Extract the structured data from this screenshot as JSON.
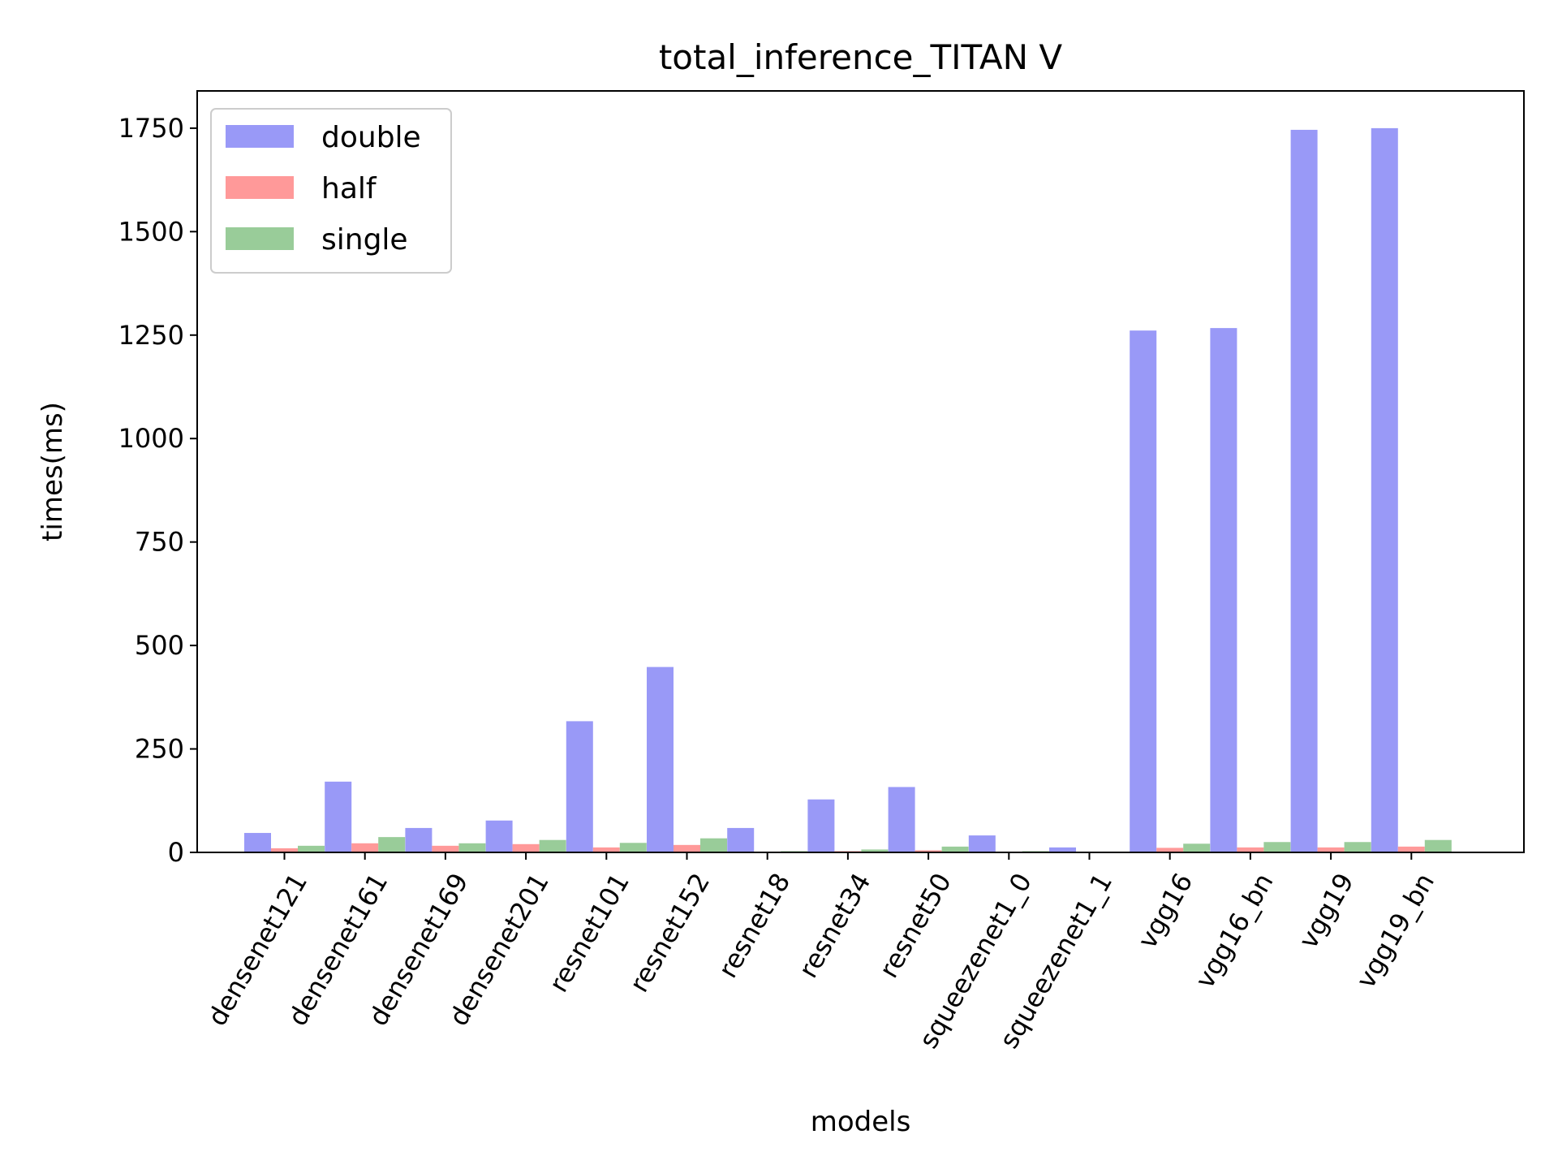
{
  "chart_data": {
    "type": "bar",
    "title": "total_inference_TITAN V",
    "xlabel": "models",
    "ylabel": "times(ms)",
    "ylim": [
      0,
      1840
    ],
    "yticks": [
      0,
      250,
      500,
      750,
      1000,
      1250,
      1500,
      1750
    ],
    "yticklabels": [
      "0",
      "250",
      "500",
      "750",
      "1000",
      "1250",
      "1500",
      "1750"
    ],
    "legend_position": "top-left",
    "categories": [
      "densenet121",
      "densenet161",
      "densenet169",
      "densenet201",
      "resnet101",
      "resnet152",
      "resnet18",
      "resnet34",
      "resnet50",
      "squeezenet1_0",
      "squeezenet1_1",
      "vgg16",
      "vgg16_bn",
      "vgg19",
      "vgg19_bn"
    ],
    "series": [
      {
        "name": "double",
        "color": "#9999f7",
        "values": [
          47,
          171,
          59,
          77,
          317,
          448,
          59,
          128,
          158,
          41,
          12,
          1261,
          1267,
          1746,
          1750
        ]
      },
      {
        "name": "half",
        "color": "#ff9999",
        "values": [
          10,
          22,
          16,
          20,
          12,
          18,
          2,
          3,
          5,
          2,
          1,
          11,
          12,
          12,
          14
        ]
      },
      {
        "name": "single",
        "color": "#99cc99",
        "values": [
          16,
          37,
          22,
          30,
          23,
          34,
          3,
          7,
          14,
          3,
          2,
          21,
          25,
          25,
          30
        ]
      }
    ]
  }
}
